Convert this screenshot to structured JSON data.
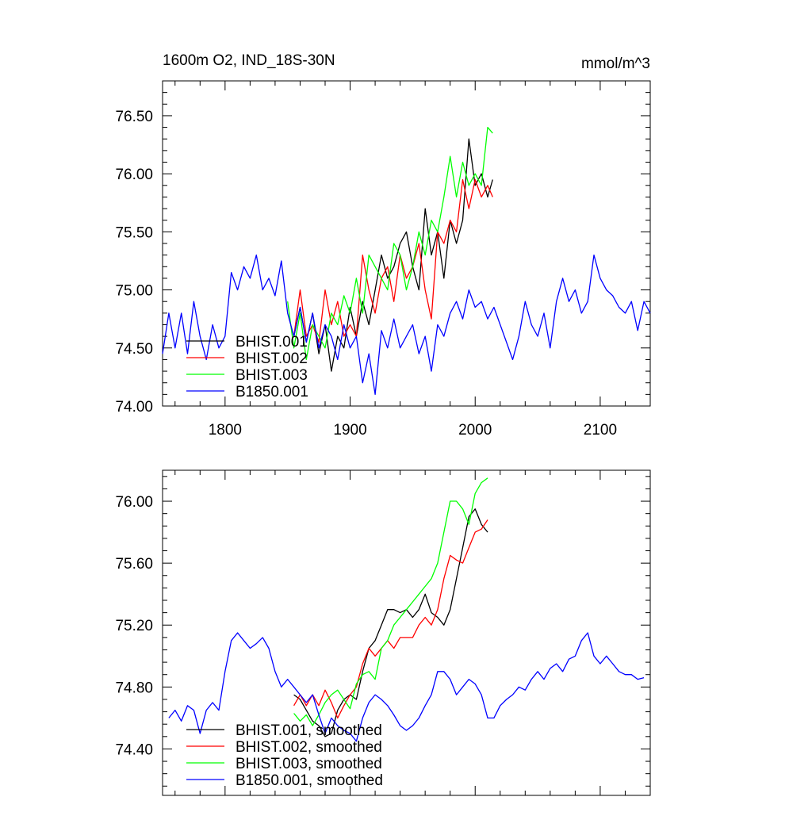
{
  "chart_data": [
    {
      "type": "line",
      "title": "1600m O2, IND_18S-30N",
      "units": "mmol/m^3",
      "xlim": [
        1750,
        2140
      ],
      "ylim": [
        74.0,
        76.8
      ],
      "x_ticks": [
        1800,
        1900,
        2000,
        2100
      ],
      "x_tick_labels": [
        "1800",
        "1900",
        "2000",
        "2100"
      ],
      "y_ticks": [
        74.0,
        74.5,
        75.0,
        75.5,
        76.0,
        76.5
      ],
      "y_tick_labels": [
        "74.00",
        "74.50",
        "75.00",
        "75.50",
        "76.00",
        "76.50"
      ],
      "legend_position": "bottom-left",
      "series": [
        {
          "name": "BHIST.001",
          "color": "#000000",
          "x": [
            1855,
            1860,
            1865,
            1870,
            1875,
            1880,
            1885,
            1890,
            1895,
            1900,
            1905,
            1910,
            1915,
            1920,
            1925,
            1930,
            1935,
            1940,
            1945,
            1950,
            1955,
            1960,
            1965,
            1970,
            1975,
            1980,
            1985,
            1990,
            1995,
            2000,
            2005,
            2010,
            2014
          ],
          "y": [
            74.6,
            74.85,
            74.55,
            74.8,
            74.45,
            74.7,
            74.3,
            74.6,
            74.5,
            74.85,
            74.6,
            74.9,
            74.7,
            75.0,
            75.3,
            75.1,
            75.2,
            75.4,
            75.5,
            75.2,
            75.0,
            75.7,
            75.3,
            75.5,
            75.1,
            75.6,
            75.4,
            75.6,
            76.3,
            75.9,
            76.0,
            75.8,
            75.95
          ]
        },
        {
          "name": "BHIST.002",
          "color": "#ff0000",
          "x": [
            1855,
            1860,
            1865,
            1870,
            1875,
            1880,
            1885,
            1890,
            1895,
            1900,
            1905,
            1910,
            1915,
            1920,
            1925,
            1930,
            1935,
            1940,
            1945,
            1950,
            1955,
            1960,
            1965,
            1970,
            1975,
            1980,
            1985,
            1990,
            1995,
            2000,
            2005,
            2010,
            2014
          ],
          "y": [
            74.6,
            75.0,
            74.6,
            74.7,
            74.55,
            75.0,
            74.7,
            74.9,
            74.6,
            74.7,
            74.6,
            75.3,
            75.0,
            74.8,
            75.1,
            75.2,
            74.9,
            75.3,
            75.1,
            75.2,
            75.4,
            75.0,
            74.75,
            75.5,
            75.4,
            75.6,
            75.5,
            75.95,
            75.7,
            75.95,
            75.8,
            75.9,
            75.8
          ]
        },
        {
          "name": "BHIST.003",
          "color": "#00ff00",
          "x": [
            1850,
            1855,
            1860,
            1865,
            1870,
            1875,
            1880,
            1885,
            1890,
            1895,
            1900,
            1905,
            1910,
            1915,
            1920,
            1925,
            1930,
            1935,
            1940,
            1945,
            1950,
            1955,
            1960,
            1965,
            1970,
            1975,
            1980,
            1985,
            1990,
            1995,
            2000,
            2005,
            2010,
            2014
          ],
          "y": [
            74.9,
            74.5,
            74.8,
            74.4,
            74.7,
            74.6,
            74.5,
            74.8,
            74.7,
            74.95,
            74.8,
            75.1,
            74.8,
            75.3,
            75.2,
            75.1,
            75.0,
            75.4,
            75.3,
            75.0,
            75.2,
            75.5,
            75.3,
            75.6,
            75.5,
            75.8,
            76.15,
            75.8,
            76.1,
            75.9,
            76.0,
            75.9,
            76.4,
            76.35
          ]
        },
        {
          "name": "B1850.001",
          "color": "#0000ff",
          "x": [
            1750,
            1755,
            1760,
            1765,
            1770,
            1775,
            1780,
            1785,
            1790,
            1795,
            1800,
            1805,
            1810,
            1815,
            1820,
            1825,
            1830,
            1835,
            1840,
            1845,
            1850,
            1855,
            1860,
            1865,
            1870,
            1875,
            1880,
            1885,
            1890,
            1895,
            1900,
            1905,
            1910,
            1915,
            1920,
            1925,
            1930,
            1935,
            1940,
            1945,
            1950,
            1955,
            1960,
            1965,
            1970,
            1975,
            1980,
            1985,
            1990,
            1995,
            2000,
            2005,
            2010,
            2015,
            2020,
            2025,
            2030,
            2035,
            2040,
            2045,
            2050,
            2055,
            2060,
            2065,
            2070,
            2075,
            2080,
            2085,
            2090,
            2095,
            2100,
            2105,
            2110,
            2115,
            2120,
            2125,
            2130,
            2135,
            2140
          ],
          "y": [
            74.45,
            74.8,
            74.5,
            74.8,
            74.45,
            74.9,
            74.6,
            74.4,
            74.7,
            74.5,
            74.6,
            75.15,
            75.0,
            75.2,
            75.1,
            75.3,
            75.0,
            75.1,
            74.95,
            75.25,
            74.8,
            74.6,
            74.85,
            74.55,
            74.8,
            74.5,
            74.7,
            74.6,
            74.4,
            74.7,
            74.5,
            74.6,
            74.2,
            74.45,
            74.1,
            74.65,
            74.5,
            74.75,
            74.5,
            74.6,
            74.7,
            74.45,
            74.6,
            74.3,
            74.7,
            74.6,
            74.8,
            74.9,
            74.75,
            75.0,
            74.85,
            74.9,
            74.75,
            74.85,
            74.7,
            74.55,
            74.4,
            74.6,
            74.9,
            74.7,
            74.6,
            74.8,
            74.5,
            74.9,
            75.1,
            74.9,
            75.0,
            74.8,
            74.9,
            75.3,
            75.1,
            75.0,
            74.95,
            74.85,
            74.8,
            74.9,
            74.65,
            74.9,
            74.8
          ]
        }
      ]
    },
    {
      "type": "line",
      "xlim": [
        1750,
        2140
      ],
      "ylim": [
        74.1,
        76.2
      ],
      "x_ticks": [
        1800,
        1900,
        2000,
        2100
      ],
      "y_ticks": [
        74.4,
        74.8,
        75.2,
        75.6,
        76.0
      ],
      "y_tick_labels": [
        "74.40",
        "74.80",
        "75.20",
        "75.60",
        "76.00"
      ],
      "legend_position": "bottom-left",
      "series": [
        {
          "name": "BHIST.001, smoothed",
          "color": "#000000",
          "x": [
            1855,
            1860,
            1865,
            1870,
            1875,
            1880,
            1885,
            1890,
            1895,
            1900,
            1905,
            1910,
            1915,
            1920,
            1925,
            1930,
            1935,
            1940,
            1945,
            1950,
            1955,
            1960,
            1965,
            1970,
            1975,
            1980,
            1985,
            1990,
            1995,
            2000,
            2005,
            2010
          ],
          "y": [
            74.75,
            74.72,
            74.65,
            74.58,
            74.55,
            74.48,
            74.5,
            74.65,
            74.72,
            74.75,
            74.72,
            74.9,
            75.05,
            75.1,
            75.2,
            75.3,
            75.3,
            75.28,
            75.3,
            75.25,
            75.3,
            75.4,
            75.28,
            75.25,
            75.2,
            75.3,
            75.5,
            75.7,
            75.9,
            75.95,
            75.85,
            75.8
          ]
        },
        {
          "name": "BHIST.002, smoothed",
          "color": "#ff0000",
          "x": [
            1855,
            1860,
            1865,
            1870,
            1875,
            1880,
            1885,
            1890,
            1895,
            1900,
            1905,
            1910,
            1915,
            1920,
            1925,
            1930,
            1935,
            1940,
            1945,
            1950,
            1955,
            1960,
            1965,
            1970,
            1975,
            1980,
            1985,
            1990,
            1995,
            2000,
            2005,
            2010
          ],
          "y": [
            74.68,
            74.75,
            74.68,
            74.75,
            74.68,
            74.78,
            74.7,
            74.6,
            74.68,
            74.75,
            74.8,
            74.95,
            75.05,
            75.0,
            75.05,
            75.1,
            75.05,
            75.12,
            75.12,
            75.12,
            75.2,
            75.25,
            75.2,
            75.3,
            75.5,
            75.65,
            75.62,
            75.6,
            75.7,
            75.8,
            75.82,
            75.88
          ]
        },
        {
          "name": "BHIST.003, smoothed",
          "color": "#00ff00",
          "x": [
            1855,
            1860,
            1865,
            1870,
            1875,
            1880,
            1885,
            1890,
            1895,
            1900,
            1905,
            1910,
            1915,
            1920,
            1925,
            1930,
            1935,
            1940,
            1945,
            1950,
            1955,
            1960,
            1965,
            1970,
            1975,
            1980,
            1985,
            1990,
            1995,
            2000,
            2005,
            2010
          ],
          "y": [
            74.63,
            74.58,
            74.62,
            74.55,
            74.62,
            74.7,
            74.75,
            74.78,
            74.72,
            74.66,
            74.82,
            74.88,
            74.9,
            74.85,
            75.05,
            75.1,
            75.2,
            75.25,
            75.3,
            75.35,
            75.4,
            75.45,
            75.5,
            75.6,
            75.8,
            76.0,
            76.0,
            75.95,
            75.85,
            76.05,
            76.12,
            76.15
          ]
        },
        {
          "name": "B1850.001, smoothed",
          "color": "#0000ff",
          "x": [
            1755,
            1760,
            1765,
            1770,
            1775,
            1780,
            1785,
            1790,
            1795,
            1800,
            1805,
            1810,
            1815,
            1820,
            1825,
            1830,
            1835,
            1840,
            1845,
            1850,
            1855,
            1860,
            1865,
            1870,
            1875,
            1880,
            1885,
            1890,
            1895,
            1900,
            1905,
            1910,
            1915,
            1920,
            1925,
            1930,
            1935,
            1940,
            1945,
            1950,
            1955,
            1960,
            1965,
            1970,
            1975,
            1980,
            1985,
            1990,
            1995,
            2000,
            2005,
            2010,
            2015,
            2020,
            2025,
            2030,
            2035,
            2040,
            2045,
            2050,
            2055,
            2060,
            2065,
            2070,
            2075,
            2080,
            2085,
            2090,
            2095,
            2100,
            2105,
            2110,
            2115,
            2120,
            2125,
            2130,
            2135
          ],
          "y": [
            74.6,
            74.65,
            74.58,
            74.68,
            74.65,
            74.5,
            74.65,
            74.7,
            74.65,
            74.9,
            75.1,
            75.15,
            75.1,
            75.05,
            75.08,
            75.12,
            75.05,
            74.9,
            74.8,
            74.85,
            74.8,
            74.75,
            74.7,
            74.75,
            74.62,
            74.5,
            74.6,
            74.55,
            74.52,
            74.5,
            74.45,
            74.6,
            74.7,
            74.75,
            74.72,
            74.68,
            74.62,
            74.55,
            74.52,
            74.55,
            74.6,
            74.68,
            74.75,
            74.9,
            74.9,
            74.85,
            74.75,
            74.8,
            74.85,
            74.82,
            74.75,
            74.6,
            74.6,
            74.68,
            74.72,
            74.75,
            74.8,
            74.78,
            74.85,
            74.9,
            74.85,
            74.92,
            74.95,
            74.9,
            74.98,
            75.0,
            75.1,
            75.15,
            75.0,
            74.95,
            75.0,
            74.95,
            74.9,
            74.88,
            74.88,
            74.85,
            74.86
          ]
        }
      ]
    }
  ]
}
